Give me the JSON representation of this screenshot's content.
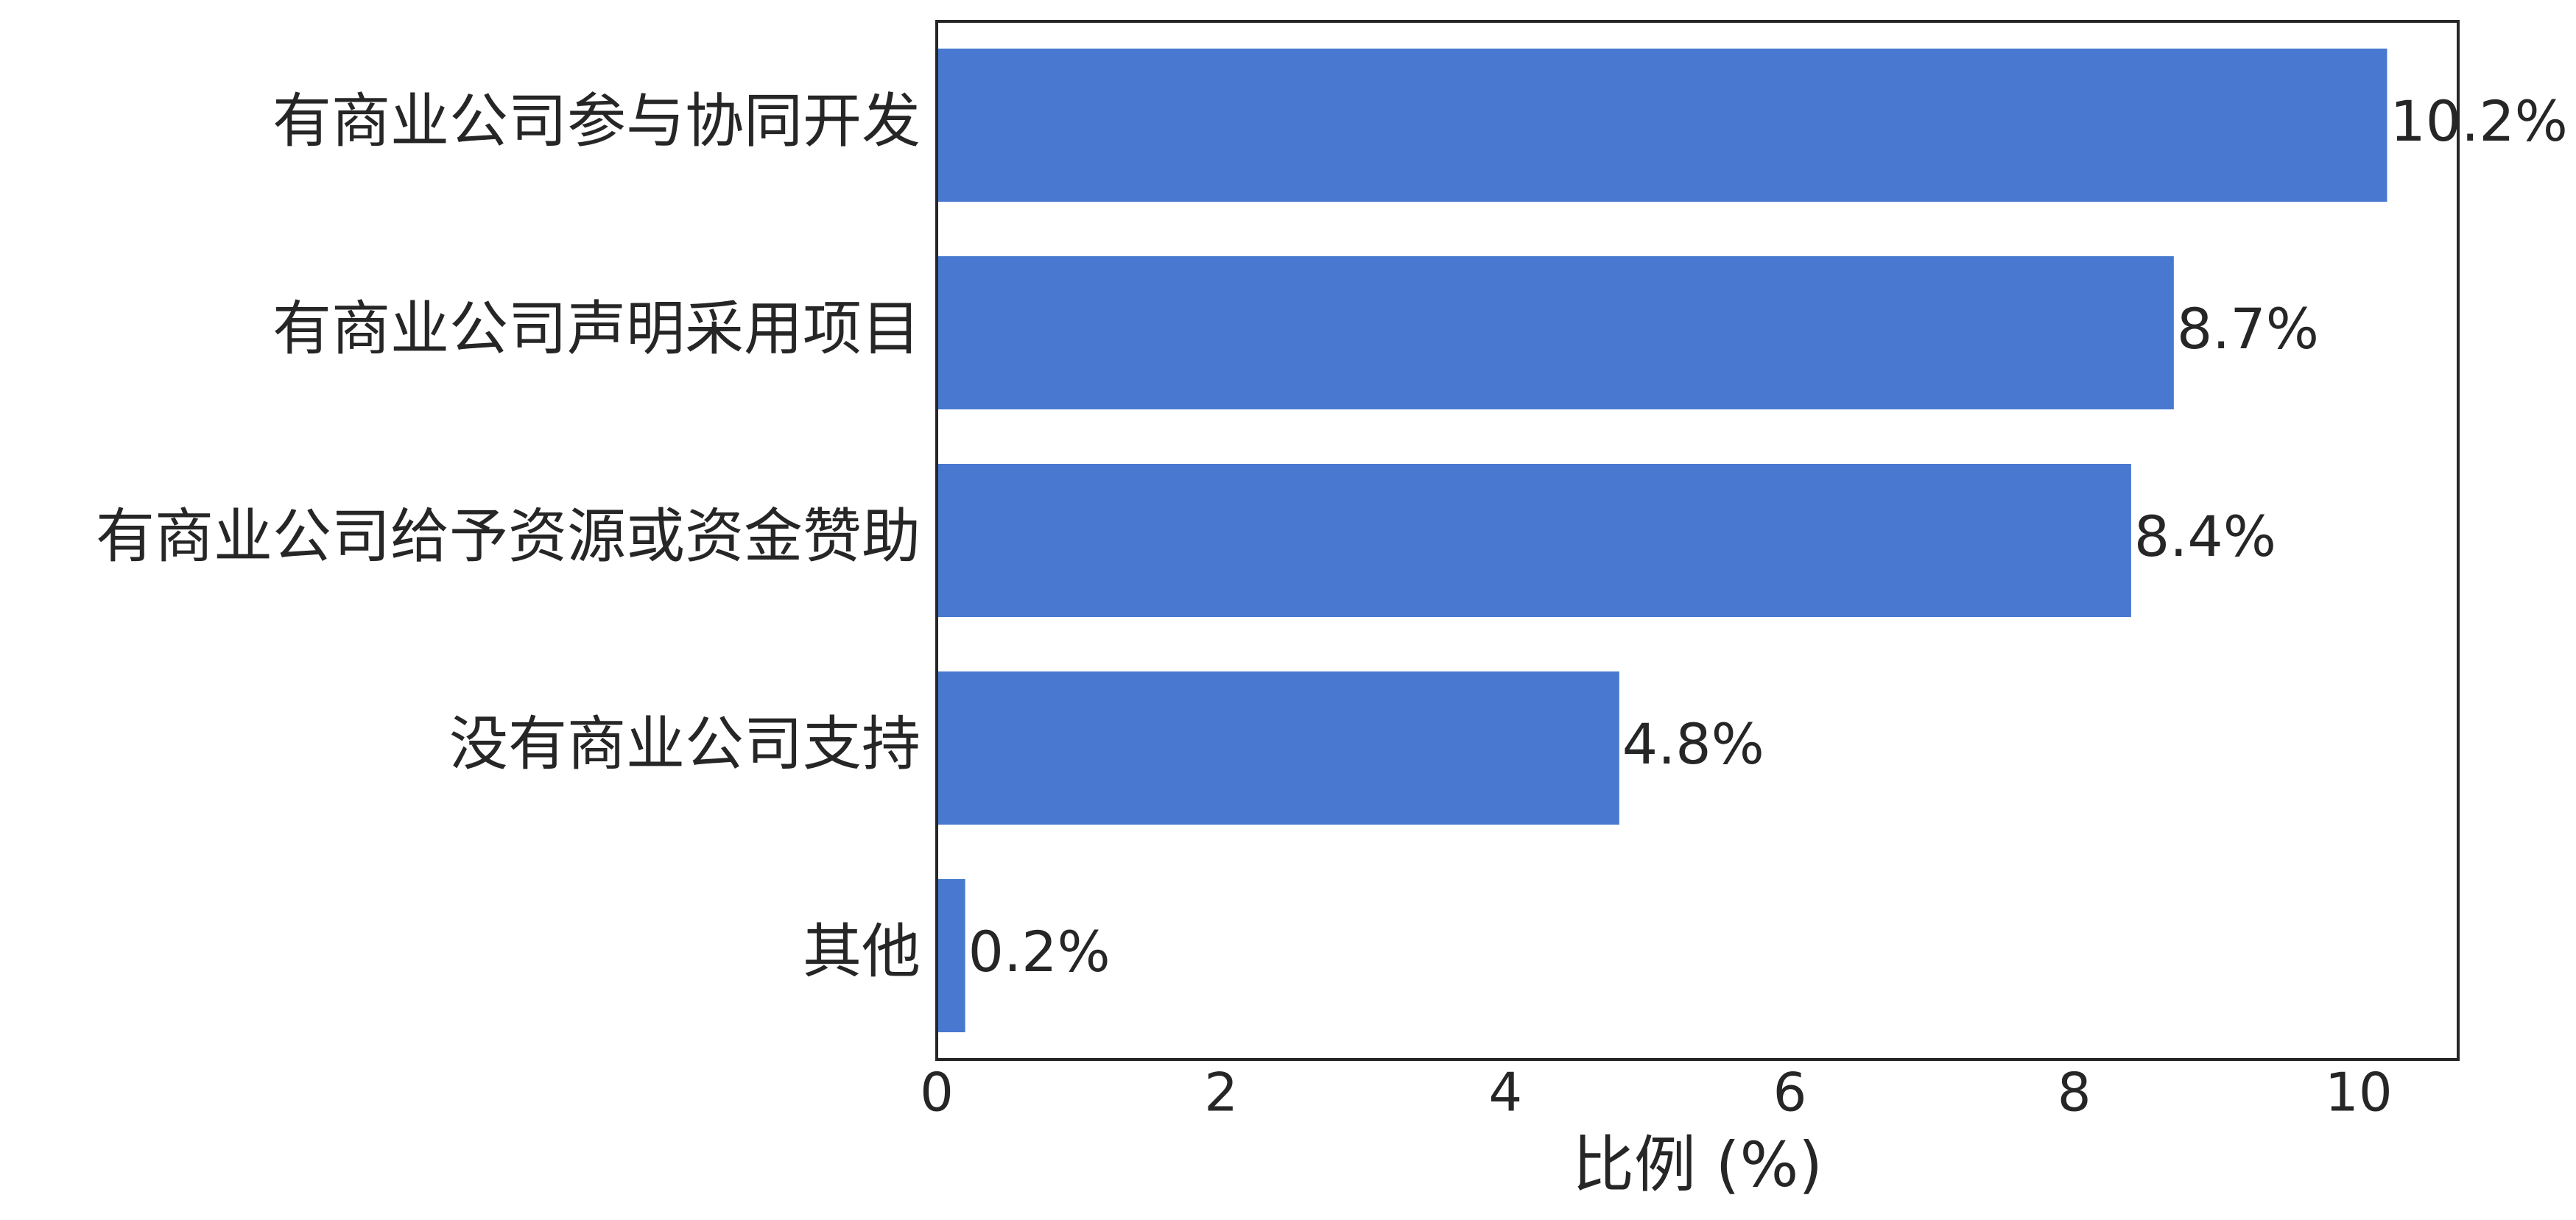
{
  "chart_data": {
    "type": "barh",
    "categories": [
      "有商业公司参与协同开发",
      "有商业公司声明采用项目",
      "有商业公司给予资源或资金赞助",
      "没有商业公司支持",
      "其他"
    ],
    "values": [
      10.2,
      8.7,
      8.4,
      4.8,
      0.2
    ],
    "value_labels": [
      "10.2%",
      "8.7%",
      "8.4%",
      "4.8%",
      "0.2%"
    ],
    "color": "#4878cf",
    "xlabel": "比例 (%)",
    "xlim": [
      0,
      10.7
    ],
    "xticks": [
      0,
      2,
      4,
      6,
      8,
      10
    ],
    "grid": false
  }
}
